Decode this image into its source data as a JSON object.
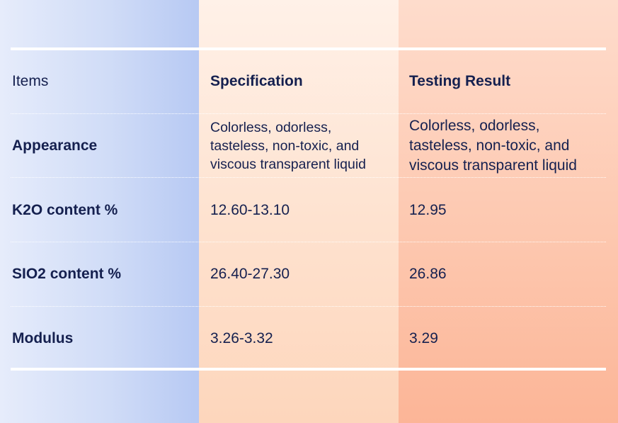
{
  "table": {
    "header": [
      "Items",
      "Specification",
      "Testing Result"
    ],
    "rows": [
      [
        "Appearance",
        [
          "Colorless, odorless,",
          "tasteless, non-toxic, and",
          "viscous transparent liquid"
        ],
        [
          "Colorless, odorless,",
          "tasteless, non-toxic, and",
          "viscous transparent liquid"
        ]
      ],
      [
        "K2O content %",
        "12.60-13.10",
        "12.95"
      ],
      [
        "SIO2 content %",
        "26.40-27.30",
        "26.86"
      ],
      [
        "Modulus",
        "3.26-3.32",
        "3.29"
      ]
    ]
  }
}
